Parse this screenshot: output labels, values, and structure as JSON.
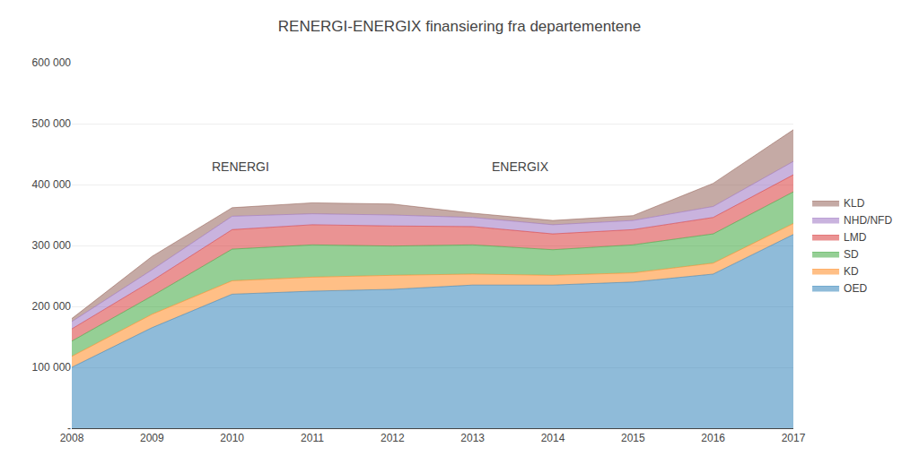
{
  "chart_data": {
    "type": "area",
    "stacked": true,
    "title": "RENERGI-ENERGIX finansiering fra departementene",
    "x": [
      2008,
      2009,
      2010,
      2011,
      2012,
      2013,
      2014,
      2015,
      2016,
      2017
    ],
    "series": [
      {
        "name": "OED",
        "values": [
          100000,
          165000,
          220000,
          225000,
          228000,
          235000,
          235000,
          240000,
          253000,
          318000
        ]
      },
      {
        "name": "KD",
        "values": [
          18000,
          22000,
          22000,
          23000,
          23000,
          18000,
          16000,
          15000,
          18000,
          18000
        ]
      },
      {
        "name": "SD",
        "values": [
          25000,
          30000,
          52000,
          53000,
          48000,
          48000,
          42000,
          46000,
          48000,
          52000
        ]
      },
      {
        "name": "LMD",
        "values": [
          20000,
          25000,
          32000,
          33000,
          33000,
          30000,
          26000,
          25000,
          27000,
          28000
        ]
      },
      {
        "name": "NHD/NFD",
        "values": [
          12000,
          18000,
          22000,
          18000,
          18000,
          15000,
          15000,
          15000,
          18000,
          22000
        ]
      },
      {
        "name": "KLD",
        "values": [
          5000,
          22000,
          14000,
          18000,
          18000,
          7000,
          7000,
          8000,
          38000,
          52000
        ]
      }
    ],
    "xlim": [
      2008,
      2017
    ],
    "xticks": [
      2008,
      2009,
      2010,
      2011,
      2012,
      2013,
      2014,
      2015,
      2016,
      2017
    ],
    "ylim": [
      0,
      600000
    ],
    "yticks": [
      {
        "value": 0,
        "label": "-"
      },
      {
        "value": 100000,
        "label": "100 000"
      },
      {
        "value": 200000,
        "label": "200 000"
      },
      {
        "value": 300000,
        "label": "300 000"
      },
      {
        "value": 400000,
        "label": "400 000"
      },
      {
        "value": 500000,
        "label": "500 000"
      },
      {
        "value": 600000,
        "label": "600 000"
      }
    ],
    "annotations": [
      {
        "text": "RENERGI",
        "x": 2010.1,
        "y": 430000
      },
      {
        "text": "ENERGIX",
        "x": 2013.6,
        "y": 430000
      }
    ],
    "grid": true,
    "legend": "right"
  }
}
